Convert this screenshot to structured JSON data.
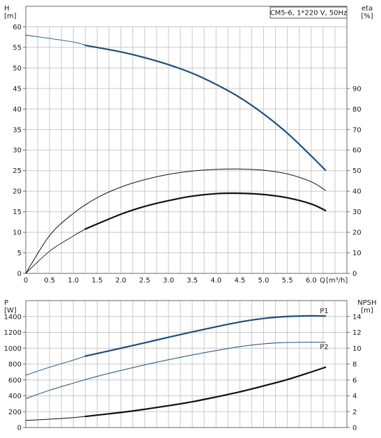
{
  "chart_data": [
    {
      "type": "line",
      "title": "CM5-6, 1*220 V, 50Hz",
      "xlabel": "Q [m³/h]",
      "x_unit_lines": [
        "Q",
        "[m³/h]"
      ],
      "ylabel_left_lines": [
        "H",
        "[m]"
      ],
      "ylabel_right_lines": [
        "eta",
        "[%]"
      ],
      "xlim": [
        0,
        6.75
      ],
      "ylim_left": [
        0,
        65
      ],
      "ylim_right": [
        0,
        130
      ],
      "x_ticks": [
        "0",
        "0.5",
        "1.0",
        "1.5",
        "2.0",
        "2.5",
        "3.0",
        "3.5",
        "4.0",
        "4.5",
        "5.0",
        "5.5",
        "6.0"
      ],
      "x_tick_values": [
        0,
        0.5,
        1.0,
        1.5,
        2.0,
        2.5,
        3.0,
        3.5,
        4.0,
        4.5,
        5.0,
        5.5,
        6.0
      ],
      "y_left_ticks": [
        0,
        5,
        10,
        15,
        20,
        25,
        30,
        35,
        40,
        45,
        50,
        55,
        60
      ],
      "y_right_ticks": [
        0,
        10,
        20,
        30,
        40,
        50,
        60,
        70,
        80,
        90
      ],
      "grid": true,
      "series": [
        {
          "label": "",
          "axis": "left",
          "color": "#1f4e79",
          "style": "thin-extended",
          "x": [
            0,
            1.0,
            1.25
          ],
          "y": [
            58,
            56.3,
            55.5
          ]
        },
        {
          "label": "",
          "axis": "left",
          "color": "#1f4e79",
          "style": "bold",
          "x": [
            1.25,
            2.0,
            2.5,
            3.0,
            3.5,
            4.0,
            4.5,
            5.0,
            5.5,
            6.0,
            6.3
          ],
          "y": [
            55.5,
            53.9,
            52.5,
            50.8,
            48.7,
            46.0,
            42.8,
            38.8,
            34.1,
            28.6,
            25.1
          ]
        },
        {
          "label": "",
          "axis": "right",
          "color": "#111111",
          "style": "thin",
          "x": [
            0,
            0.5,
            1.0,
            1.5,
            2.0,
            2.5,
            3.0,
            3.5,
            4.0,
            4.5,
            5.0,
            5.5,
            6.0,
            6.3
          ],
          "y": [
            0,
            18.4,
            29.2,
            36.8,
            42.0,
            45.6,
            48.2,
            49.8,
            50.6,
            50.8,
            50.2,
            48.4,
            44.6,
            40.4
          ]
        },
        {
          "label": "",
          "axis": "right",
          "color": "#111111",
          "style": "thin-extended",
          "x": [
            0,
            0.5,
            1.0,
            1.25
          ],
          "y": [
            0,
            10.8,
            18.2,
            21.6
          ]
        },
        {
          "label": "",
          "axis": "right",
          "color": "#111111",
          "style": "bold",
          "x": [
            1.25,
            2.0,
            2.5,
            3.0,
            3.5,
            4.0,
            4.5,
            5.0,
            5.5,
            6.0,
            6.3
          ],
          "y": [
            21.6,
            28.8,
            32.6,
            35.4,
            37.6,
            38.8,
            39.0,
            38.4,
            36.8,
            33.8,
            30.6
          ]
        }
      ]
    },
    {
      "type": "line",
      "title": "",
      "xlim": [
        0,
        6.75
      ],
      "ylim_left": [
        0,
        1600
      ],
      "ylim_right": [
        0,
        16
      ],
      "ylabel_left_lines": [
        "P",
        "[W]"
      ],
      "ylabel_right_lines": [
        "NPSH",
        "[m]"
      ],
      "y_left_ticks": [
        0,
        200,
        400,
        600,
        800,
        1000,
        1200,
        1400
      ],
      "y_right_ticks": [
        0,
        2,
        4,
        6,
        8,
        10,
        12,
        14
      ],
      "grid": true,
      "series": [
        {
          "label": "P1",
          "axis": "left",
          "color": "#1f4e79",
          "style": "thin-extended",
          "x": [
            0,
            0.5,
            1.0,
            1.25
          ],
          "y": [
            660,
            760,
            850,
            900
          ]
        },
        {
          "label": "P1",
          "axis": "left",
          "color": "#1f4e79",
          "style": "bold",
          "x": [
            1.25,
            2.0,
            2.5,
            3.0,
            3.5,
            4.0,
            4.5,
            5.0,
            5.5,
            6.0,
            6.3
          ],
          "y": [
            900,
            1000,
            1068,
            1138,
            1205,
            1270,
            1330,
            1375,
            1400,
            1408,
            1405
          ]
        },
        {
          "label": "P2",
          "axis": "left",
          "color": "#1f4e79",
          "style": "thin",
          "x": [
            0,
            0.5,
            1.0,
            1.5,
            2.0,
            2.5,
            3.0,
            3.5,
            4.0,
            4.5,
            5.0,
            5.5,
            6.0,
            6.3
          ],
          "y": [
            365,
            470,
            560,
            645,
            720,
            790,
            855,
            915,
            970,
            1020,
            1055,
            1072,
            1075,
            1075
          ]
        },
        {
          "label": "",
          "axis": "right",
          "color": "#111111",
          "style": "thin",
          "x": [
            0,
            0.5,
            1.0,
            1.25
          ],
          "y": [
            0.9,
            1.05,
            1.25,
            1.4
          ]
        },
        {
          "label": "",
          "axis": "right",
          "color": "#111111",
          "style": "bold",
          "x": [
            1.25,
            2.0,
            2.5,
            3.0,
            3.5,
            4.0,
            4.5,
            5.0,
            5.5,
            6.0,
            6.3
          ],
          "y": [
            1.4,
            1.9,
            2.3,
            2.75,
            3.25,
            3.85,
            4.5,
            5.25,
            6.05,
            7.0,
            7.6
          ]
        }
      ]
    }
  ]
}
